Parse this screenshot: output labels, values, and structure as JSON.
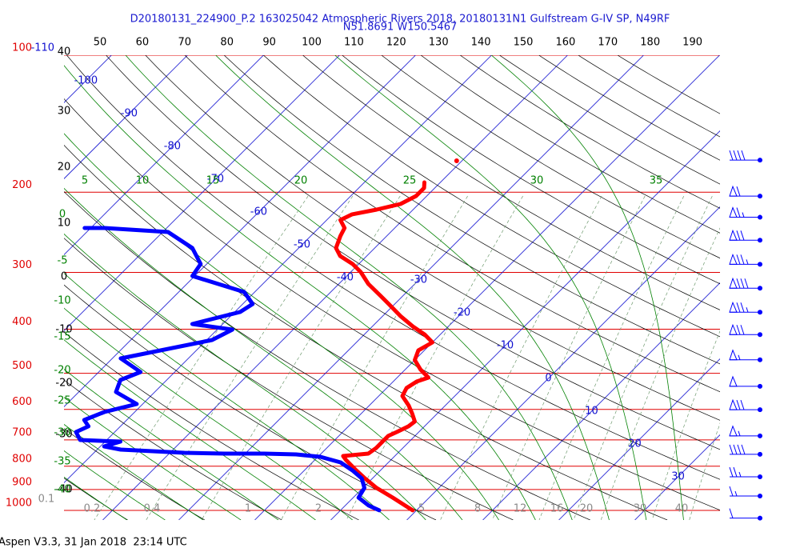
{
  "chart_data": {
    "type": "skewt",
    "title": "D20180131_224900_P.2 163025042 Atmospheric Rivers 2018, 20180131N1 Gulfstream G-IV SP, N49RF",
    "subtitle": "N51.8691 W150.5467",
    "footer": "Aspen V3.3, 31 Jan 2018  23:14 UTC",
    "ylim": [
      1050,
      100
    ],
    "yticks": [
      100,
      200,
      300,
      400,
      500,
      600,
      700,
      800,
      900,
      1000
    ],
    "xlim": [
      -45.1,
      41.2
    ],
    "isotherms": [
      -110,
      -100,
      -90,
      -80,
      -70,
      -60,
      -50,
      -40,
      -30,
      -20,
      -10,
      0,
      10,
      20,
      30
    ],
    "dry_adiabats": [
      -40,
      -30,
      -20,
      -10,
      0,
      10,
      20,
      30,
      40,
      50,
      60,
      70,
      80,
      90,
      100,
      110,
      120,
      130,
      140,
      150,
      160,
      170,
      180,
      190
    ],
    "moist_adiabats": [
      -40,
      -35,
      -30,
      -25,
      -20,
      -15,
      -10,
      -5,
      0,
      5,
      10,
      15,
      20,
      25,
      30,
      35
    ],
    "mixing_ratios": [
      0.1,
      0.2,
      0.4,
      1,
      2,
      5,
      8,
      12,
      16,
      20,
      30,
      40
    ],
    "colors": {
      "isobar": "#e00000",
      "isotherm": "#1010d0",
      "dry_adiabat": "#000000",
      "moist_adiabat": "#008000",
      "mixing_ratio": "#6f9a6f",
      "title": "#1a1ad0"
    },
    "series": [
      {
        "color": "#ff0000",
        "pressure": [
          1000,
          937.5,
          892.8,
          847.2,
          816.8,
          775,
          759.5,
          750.4,
          729.5,
          686.3,
          672.7,
          653.8,
          638.1,
          612.8,
          588.6,
          560.7,
          538.5,
          521.2,
          510.8,
          490.5,
          467.3,
          445.1,
          427.6,
          410.5,
          394.2,
          374,
          352,
          338.1,
          318.2,
          299.4,
          287.6,
          276.2,
          265.2,
          249.6,
          239.7,
          230.2,
          223.7,
          218.4,
          212.3,
          203.9,
          195.8,
          190.3
        ],
        "temperature": [
          -0.5,
          -4.8,
          -8.2,
          -11.2,
          -13.2,
          -15.9,
          -16.8,
          -13.8,
          -13.5,
          -13.5,
          -12.9,
          -12.1,
          -11.9,
          -13.3,
          -14.8,
          -16.9,
          -17.4,
          -16.9,
          -15.9,
          -18,
          -20,
          -20.8,
          -20,
          -22.1,
          -24.7,
          -27.7,
          -30.8,
          -32.9,
          -36.1,
          -38.7,
          -40.8,
          -43.5,
          -45.1,
          -46.1,
          -46.6,
          -48.2,
          -47.4,
          -44.8,
          -42.4,
          -41.4,
          -41.4,
          -42.1
        ]
      },
      {
        "color": "#0000ff",
        "pressure": [
          1000,
          976.1,
          937.5,
          892.8,
          850.6,
          816.8,
          784.5,
          762.6,
          753.4,
          750.4,
          750.4,
          747.3,
          741.3,
          735.3,
          723.6,
          706.2,
          700.5,
          672.7,
          653.8,
          633,
          607.9,
          583.8,
          549.5,
          517.1,
          496.6,
          463.6,
          422.4,
          400.7,
          389.6,
          366.6,
          352,
          331.3,
          305.6,
          287.6,
          265.2,
          244.6,
          239.7,
          239.7
        ],
        "temperature": [
          -4.9,
          -6.9,
          -9.3,
          -9.8,
          -11.4,
          -13.7,
          -16.3,
          -19.7,
          -23.2,
          -27.5,
          -32.7,
          -38.1,
          -42.5,
          -46.9,
          -49.5,
          -48,
          -53.5,
          -55.1,
          -54.2,
          -55.6,
          -54,
          -50.8,
          -55.1,
          -56.1,
          -54.5,
          -58.9,
          -49.3,
          -48,
          -54,
          -49.3,
          -48.7,
          -51.4,
          -60.3,
          -60.8,
          -64,
          -69.3,
          -78.2,
          -80.8
        ]
      },
      {
        "color": "#ff0000",
        "pressure": [
          170.6
        ],
        "temperature": [
          -40.7
        ]
      }
    ],
    "wind": {
      "color": "#0000ff",
      "pressure": [
        170,
        204,
        227,
        255,
        288,
        325,
        367,
        411,
        467,
        534,
        601,
        686,
        753,
        844,
        930,
        1040
      ],
      "speed": [
        40,
        60,
        65,
        70,
        75,
        80,
        75,
        70,
        55,
        50,
        70,
        55,
        40,
        25,
        15,
        10
      ]
    }
  }
}
